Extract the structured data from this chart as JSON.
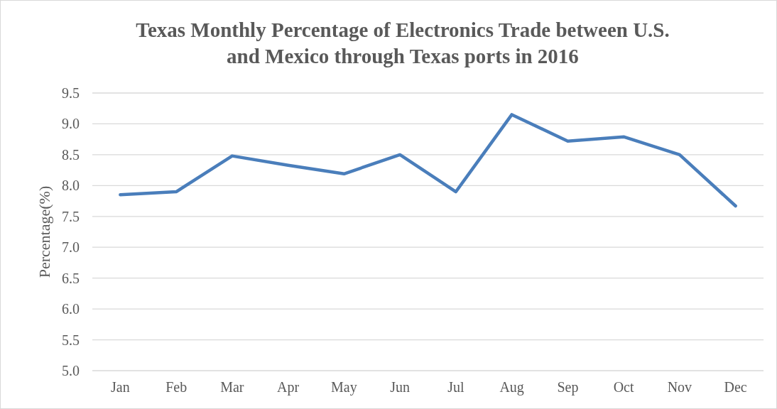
{
  "chart_data": {
    "type": "line",
    "title": "Texas Monthly Percentage of Electronics Trade between U.S. and Mexico through Texas ports in 2016",
    "ylabel": "Percentage(%)",
    "categories": [
      "Jan",
      "Feb",
      "Mar",
      "Apr",
      "May",
      "Jun",
      "Jul",
      "Aug",
      "Sep",
      "Oct",
      "Nov",
      "Dec"
    ],
    "series": [
      {
        "color": "#4a7ebb",
        "values": [
          7.85,
          7.9,
          8.48,
          8.33,
          8.19,
          8.5,
          7.9,
          9.15,
          8.72,
          8.79,
          8.5,
          7.67
        ]
      }
    ],
    "ylim": [
      5,
      9.5
    ],
    "yticks": [
      {
        "value": 5,
        "label": "5.0"
      },
      {
        "value": 5.5,
        "label": "5.5"
      },
      {
        "value": 6,
        "label": "6.0"
      },
      {
        "value": 6.5,
        "label": "6.5"
      },
      {
        "value": 7,
        "label": "7.0"
      },
      {
        "value": 7.5,
        "label": "7.5"
      },
      {
        "value": 8,
        "label": "8.0"
      },
      {
        "value": 8.5,
        "label": "8.5"
      },
      {
        "value": 9,
        "label": "9.0"
      },
      {
        "value": 9.5,
        "label": "9.5"
      }
    ],
    "grid": "y",
    "marker": "none",
    "line_style": "solid"
  }
}
